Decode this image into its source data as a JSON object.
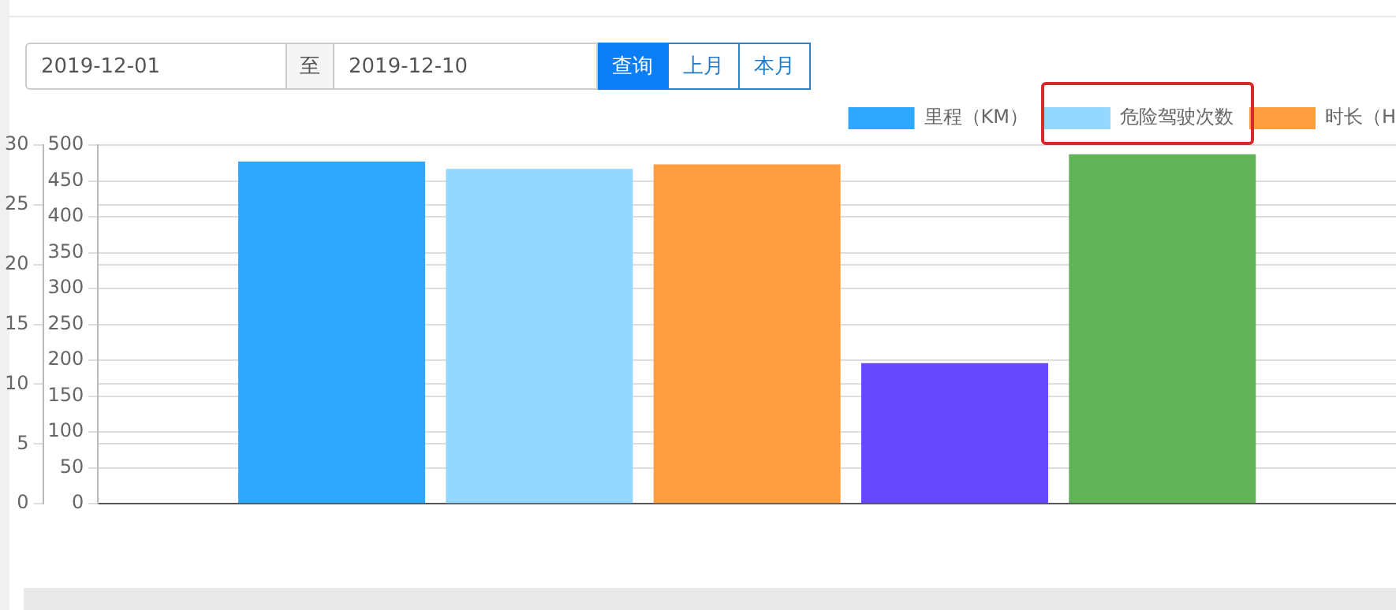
{
  "chart_data": {
    "type": "bar",
    "categories": [
      null
    ],
    "series": [
      {
        "name": "里程（KM）",
        "color": "#2ea7ff",
        "values": [
          477
        ]
      },
      {
        "name": "危险驾驶次数",
        "color": "#94d7ff",
        "values": [
          28
        ],
        "axis": "y2"
      },
      {
        "name": "时长（H",
        "color": "#ff9d3f",
        "values": [
          473
        ]
      },
      {
        "color": "#6548ff",
        "values": [
          196
        ]
      },
      {
        "color": "#62b257",
        "values": [
          487
        ]
      }
    ],
    "ylim": [
      0,
      500
    ],
    "yticks": [
      0,
      50,
      100,
      150,
      200,
      250,
      300,
      350,
      400,
      450,
      500
    ],
    "y2lim": [
      0,
      30
    ],
    "y2ticks": [
      0,
      5,
      10,
      15,
      20,
      25,
      30
    ],
    "grid": "y",
    "legend": "top right",
    "annotations": [
      "2019-12-01",
      "至",
      "2019-12-10",
      "查询",
      "上月",
      "本月"
    ]
  }
}
